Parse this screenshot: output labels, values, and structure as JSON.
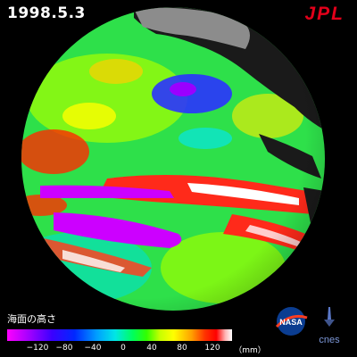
{
  "header": {
    "date": "1998.5.3",
    "agency": "JPL"
  },
  "legend": {
    "title": "海面の高さ",
    "unit": "（mm）",
    "ticks": [
      "−120",
      "−80",
      "−40",
      "0",
      "40",
      "80",
      "120"
    ]
  },
  "logos": {
    "nasa": "NASA",
    "cnes": "cnes"
  },
  "colors": {
    "jpl_red": "#e2001a",
    "background": "#000000",
    "land": "#8c8c8c"
  }
}
